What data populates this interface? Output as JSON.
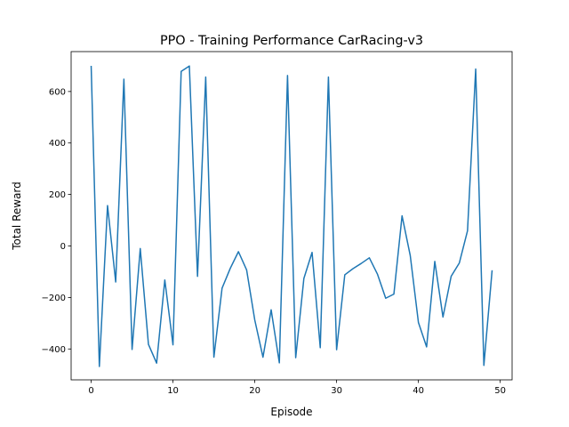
{
  "chart_data": {
    "type": "line",
    "title": "PPO - Training Performance CarRacing-v3",
    "xlabel": "Episode",
    "ylabel": "Total Reward",
    "xlim": [
      -2.45,
      51.45
    ],
    "ylim": [
      -520,
      755
    ],
    "x_ticks": [
      0,
      10,
      20,
      30,
      40,
      50
    ],
    "y_ticks": [
      -400,
      -200,
      0,
      200,
      400,
      600
    ],
    "grid": false,
    "line_color": "#1f77b4",
    "series": [
      {
        "x": [
          0,
          1,
          2,
          3,
          4,
          5,
          6,
          7,
          8,
          9,
          10,
          11,
          12,
          13,
          14,
          15,
          16,
          17,
          18,
          19,
          20,
          21,
          22,
          23,
          24,
          25,
          26,
          27,
          28,
          29,
          30,
          31,
          32,
          33,
          34,
          35,
          36,
          37,
          38,
          39,
          40,
          41,
          42,
          43,
          44,
          45,
          46,
          47,
          48,
          49
        ],
        "values": [
          697,
          -468,
          157,
          -140,
          648,
          -402,
          -10,
          -382,
          -455,
          -132,
          -384,
          678,
          699,
          -118,
          656,
          -432,
          -164,
          -87,
          -22,
          -93,
          -288,
          -432,
          -248,
          -454,
          662,
          -434,
          -126,
          -25,
          -395,
          656,
          -403,
          -112,
          -88,
          -68,
          -46,
          -110,
          -203,
          -187,
          117,
          -37,
          -297,
          -392,
          -60,
          -276,
          -118,
          -66,
          59,
          687,
          -464,
          -97
        ]
      }
    ]
  }
}
